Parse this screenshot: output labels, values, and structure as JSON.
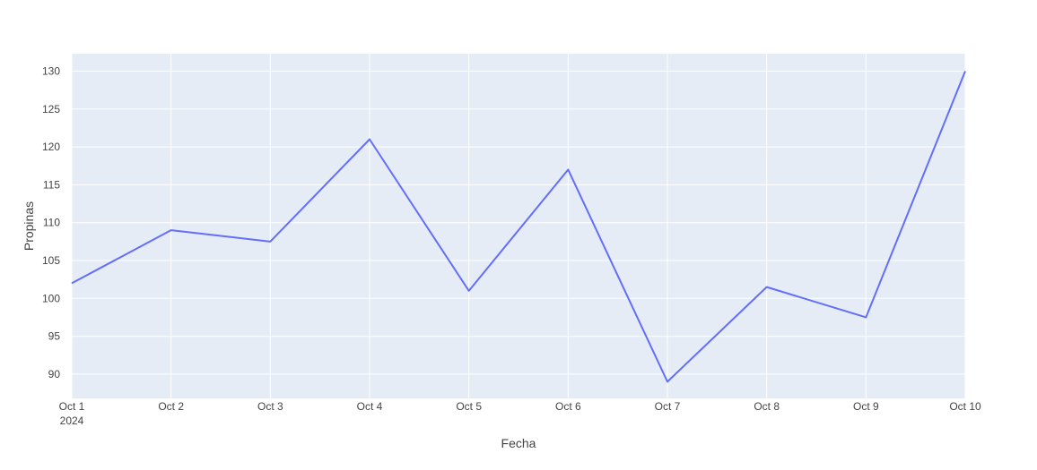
{
  "chart_data": {
    "type": "line",
    "title": "",
    "xlabel": "Fecha",
    "ylabel": "Propinas",
    "x_tick_labels": [
      "Oct 1",
      "Oct 2",
      "Oct 3",
      "Oct 4",
      "Oct 5",
      "Oct 6",
      "Oct 7",
      "Oct 8",
      "Oct 9",
      "Oct 10"
    ],
    "x_tick_sublabel": "2024",
    "x": [
      "2024-10-01",
      "2024-10-02",
      "2024-10-03",
      "2024-10-04",
      "2024-10-05",
      "2024-10-06",
      "2024-10-07",
      "2024-10-08",
      "2024-10-09",
      "2024-10-10"
    ],
    "series": [
      {
        "values": [
          102,
          109,
          107.5,
          121,
          101,
          117,
          89,
          101.5,
          97.5,
          130
        ],
        "color": "#636efa"
      }
    ],
    "y_ticks": [
      90,
      95,
      100,
      105,
      110,
      115,
      120,
      125,
      130
    ],
    "ylim": [
      86.8,
      132.3
    ],
    "xlim": [
      "2024-10-01",
      "2024-10-10"
    ],
    "grid": true,
    "legend": "none",
    "plot_background": "#e5ecf6",
    "grid_color": "#ffffff"
  }
}
